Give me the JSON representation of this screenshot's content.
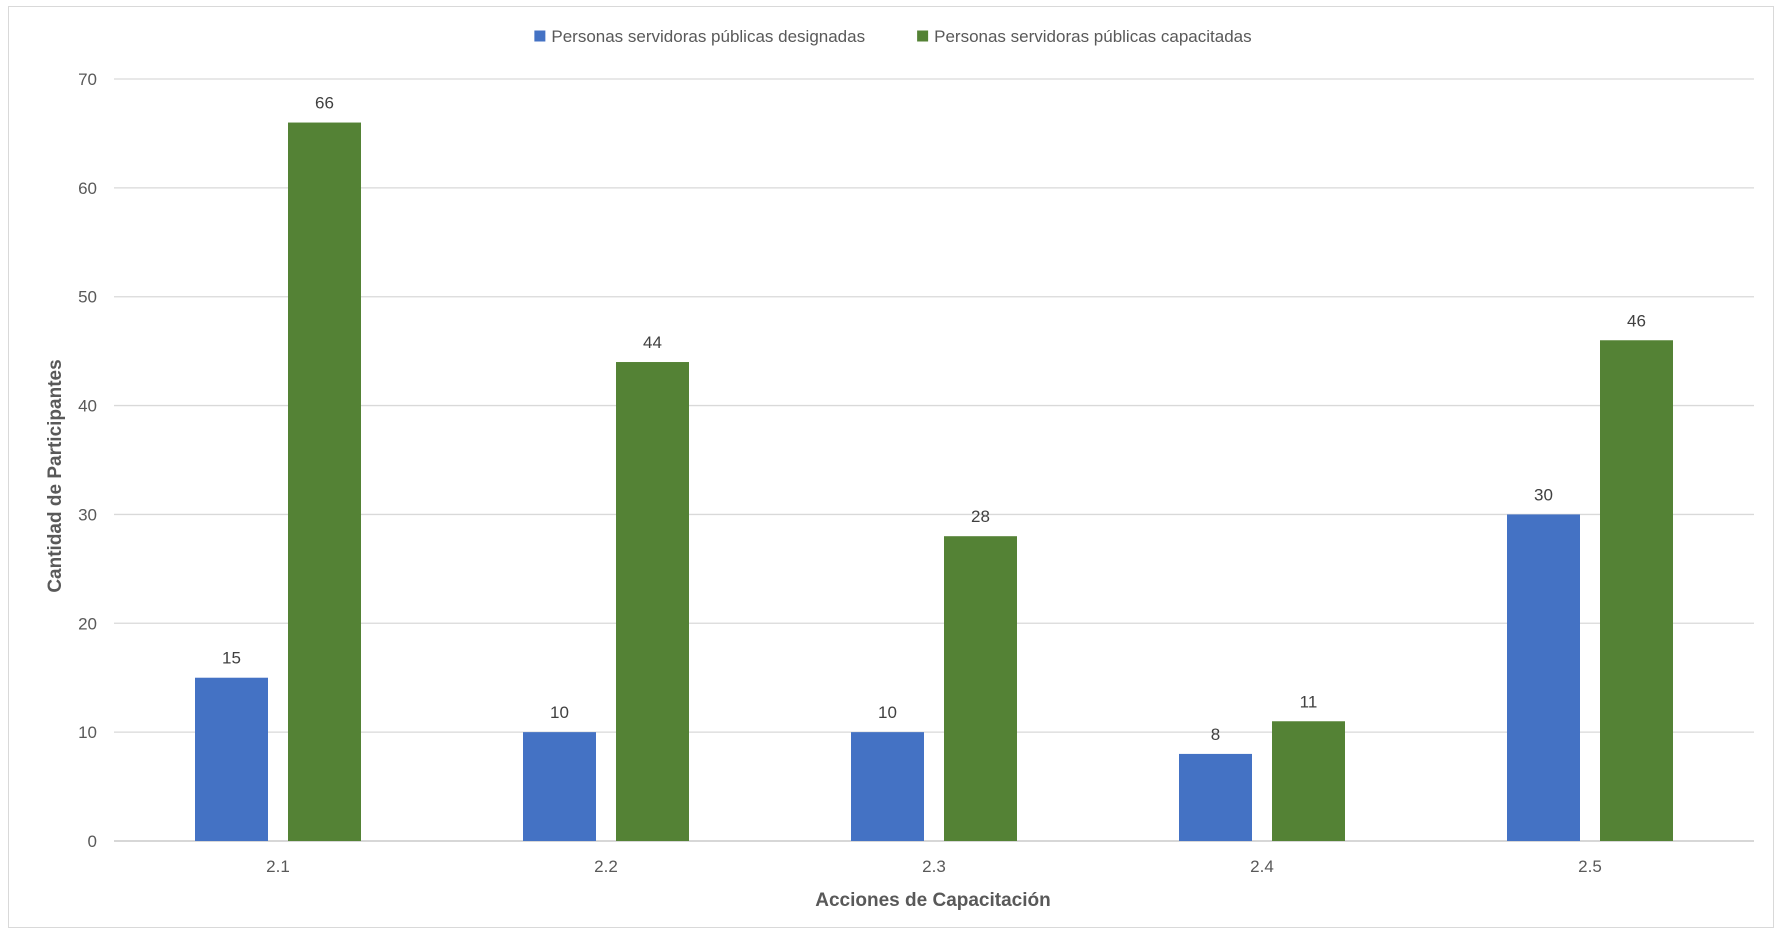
{
  "chart_data": {
    "type": "bar",
    "title": "",
    "xlabel": "Acciones de Capacitación",
    "ylabel": "Cantidad de Participantes",
    "categories": [
      "2.1",
      "2.2",
      "2.3",
      "2.4",
      "2.5"
    ],
    "series": [
      {
        "name": "Personas servidoras públicas designadas",
        "color": "#4472C4",
        "values": [
          15,
          10,
          10,
          8,
          30
        ]
      },
      {
        "name": "Personas servidoras públicas capacitadas",
        "color": "#548235",
        "values": [
          66,
          44,
          28,
          11,
          46
        ]
      }
    ],
    "ylim": [
      0,
      70
    ],
    "yticks": [
      0,
      10,
      20,
      30,
      40,
      50,
      60,
      70
    ],
    "grid": true,
    "legend_position": "top-center",
    "data_labels": true
  }
}
